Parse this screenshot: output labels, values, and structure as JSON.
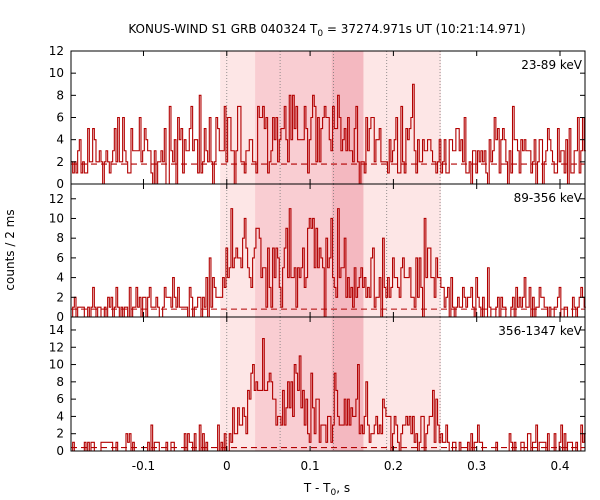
{
  "chart_data": {
    "type": "line",
    "title_main": "KONUS-WIND S1 GRB 040324 T",
    "title_sub": "0",
    "title_rest": " = 37274.971s UT (10:21:14.971)",
    "xlabel_main": "T - T",
    "xlabel_sub": "0",
    "xlabel_rest": ", s",
    "ylabel": "counts / 2 ms",
    "xlim": [
      -0.187,
      0.43
    ],
    "xticks": [
      -0.1,
      0,
      0.1,
      0.2,
      0.3,
      0.4
    ],
    "xtick_labels": [
      "-0.1",
      "0",
      "0.1",
      "0.2",
      "0.3",
      "0.4"
    ],
    "bin_width": 0.002,
    "shaded_regions": [
      {
        "range": [
          -0.008,
          0.257
        ],
        "color": "#fde6e6"
      },
      {
        "range": [
          0.034,
          0.164
        ],
        "color": "#f9cdd2"
      },
      {
        "range": [
          0.126,
          0.164
        ],
        "color": "#f4b8c0"
      }
    ],
    "vlines": [
      0.0,
      0.064,
      0.128,
      0.192,
      0.256
    ],
    "line_color": "#b20000",
    "panels": [
      {
        "name": "23-89 keV",
        "ylim": [
          0,
          12
        ],
        "yticks": [
          0,
          2,
          4,
          6,
          8,
          10,
          12
        ],
        "background": 1.8,
        "profile": [
          [
            -0.187,
            2.8
          ],
          [
            0.0,
            3.2
          ],
          [
            0.04,
            3.8
          ],
          [
            0.1,
            4.2
          ],
          [
            0.13,
            4.4
          ],
          [
            0.16,
            3.6
          ],
          [
            0.26,
            3.0
          ],
          [
            0.43,
            2.8
          ]
        ],
        "seed": 11,
        "series": []
      },
      {
        "name": "89-356 keV",
        "ylim": [
          0,
          13.5
        ],
        "yticks": [
          0,
          2,
          4,
          6,
          8,
          10,
          12
        ],
        "background": 0.8,
        "profile": [
          [
            -0.187,
            1.1
          ],
          [
            -0.03,
            1.2
          ],
          [
            -0.012,
            3
          ],
          [
            0.0,
            6.5
          ],
          [
            0.02,
            7.5
          ],
          [
            0.04,
            6.2
          ],
          [
            0.06,
            5.2
          ],
          [
            0.08,
            5.5
          ],
          [
            0.1,
            6.8
          ],
          [
            0.13,
            5.2
          ],
          [
            0.16,
            4.2
          ],
          [
            0.2,
            2.8
          ],
          [
            0.23,
            3.6
          ],
          [
            0.25,
            5.5
          ],
          [
            0.262,
            2.2
          ],
          [
            0.28,
            1.3
          ],
          [
            0.43,
            1.1
          ]
        ],
        "seed": 23,
        "series": []
      },
      {
        "name": "356-1347 keV",
        "ylim": [
          0,
          15.5
        ],
        "yticks": [
          0,
          2,
          4,
          6,
          8,
          10,
          12,
          14
        ],
        "background": 0.4,
        "profile": [
          [
            -0.187,
            0.5
          ],
          [
            -0.01,
            0.6
          ],
          [
            0.0,
            1.6
          ],
          [
            0.02,
            3.5
          ],
          [
            0.03,
            7.5
          ],
          [
            0.05,
            8.5
          ],
          [
            0.06,
            4.5
          ],
          [
            0.07,
            3.2
          ],
          [
            0.09,
            7.6
          ],
          [
            0.1,
            5.5
          ],
          [
            0.12,
            4.2
          ],
          [
            0.14,
            5.2
          ],
          [
            0.165,
            2.6
          ],
          [
            0.19,
            2.8
          ],
          [
            0.215,
            3.6
          ],
          [
            0.23,
            2.4
          ],
          [
            0.25,
            3.6
          ],
          [
            0.26,
            1.0
          ],
          [
            0.28,
            0.6
          ],
          [
            0.43,
            0.5
          ]
        ],
        "seed": 37,
        "series": []
      }
    ]
  }
}
